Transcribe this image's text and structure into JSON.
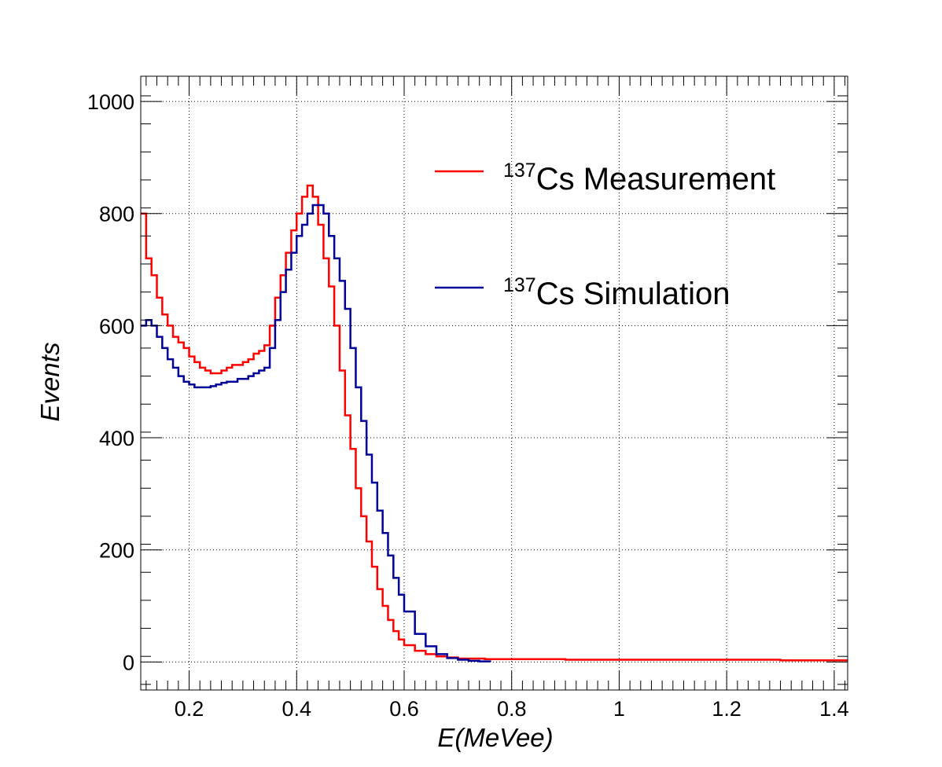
{
  "chart_data": {
    "type": "line",
    "xlabel": "E(MeVee)",
    "ylabel": "Events",
    "xlim": [
      0.11,
      1.425
    ],
    "ylim": [
      -50,
      1045
    ],
    "x_ticks": [
      "0.2",
      "0.4",
      "0.6",
      "0.8",
      "1",
      "1.2",
      "1.4"
    ],
    "y_ticks": [
      "0",
      "200",
      "400",
      "600",
      "800",
      "1000"
    ],
    "grid": true,
    "legend_placement": "top-right",
    "series": [
      {
        "name_sup": "137",
        "name_rest": "Cs Measurement",
        "color": "#ff0000",
        "x": [
          0.11,
          0.12,
          0.13,
          0.14,
          0.15,
          0.16,
          0.17,
          0.18,
          0.19,
          0.2,
          0.21,
          0.22,
          0.23,
          0.24,
          0.25,
          0.26,
          0.27,
          0.28,
          0.29,
          0.3,
          0.31,
          0.32,
          0.33,
          0.34,
          0.35,
          0.36,
          0.37,
          0.38,
          0.39,
          0.4,
          0.41,
          0.42,
          0.43,
          0.44,
          0.45,
          0.46,
          0.47,
          0.48,
          0.49,
          0.5,
          0.51,
          0.52,
          0.53,
          0.54,
          0.55,
          0.56,
          0.57,
          0.58,
          0.59,
          0.6,
          0.62,
          0.64,
          0.66,
          0.68,
          0.7,
          0.75,
          0.8,
          0.9,
          1.0,
          1.1,
          1.2,
          1.3,
          1.425
        ],
        "values": [
          800,
          720,
          690,
          650,
          620,
          600,
          580,
          570,
          560,
          545,
          535,
          525,
          520,
          515,
          515,
          520,
          525,
          530,
          530,
          535,
          540,
          550,
          555,
          565,
          600,
          650,
          690,
          730,
          770,
          800,
          830,
          850,
          830,
          780,
          720,
          670,
          600,
          520,
          440,
          380,
          310,
          260,
          215,
          170,
          130,
          100,
          75,
          55,
          40,
          30,
          20,
          14,
          10,
          8,
          6,
          5,
          5,
          4,
          4,
          4,
          4,
          3,
          3
        ]
      },
      {
        "name_sup": "137",
        "name_rest": "Cs Simulation",
        "color": "#000099",
        "x": [
          0.11,
          0.12,
          0.13,
          0.14,
          0.15,
          0.16,
          0.17,
          0.18,
          0.19,
          0.2,
          0.21,
          0.22,
          0.23,
          0.24,
          0.25,
          0.26,
          0.27,
          0.28,
          0.29,
          0.3,
          0.31,
          0.32,
          0.33,
          0.34,
          0.35,
          0.36,
          0.37,
          0.38,
          0.39,
          0.4,
          0.41,
          0.42,
          0.43,
          0.44,
          0.45,
          0.46,
          0.47,
          0.48,
          0.49,
          0.5,
          0.51,
          0.52,
          0.53,
          0.54,
          0.55,
          0.56,
          0.57,
          0.58,
          0.59,
          0.6,
          0.62,
          0.64,
          0.66,
          0.68,
          0.7,
          0.72,
          0.74,
          0.76
        ],
        "values": [
          600,
          610,
          600,
          580,
          560,
          540,
          525,
          510,
          500,
          495,
          490,
          490,
          490,
          492,
          495,
          498,
          500,
          500,
          505,
          505,
          510,
          515,
          520,
          525,
          560,
          610,
          660,
          700,
          730,
          760,
          780,
          800,
          815,
          815,
          800,
          760,
          720,
          680,
          630,
          560,
          490,
          430,
          370,
          320,
          270,
          230,
          190,
          150,
          120,
          90,
          50,
          28,
          14,
          7,
          4,
          2,
          1,
          0
        ]
      }
    ]
  }
}
